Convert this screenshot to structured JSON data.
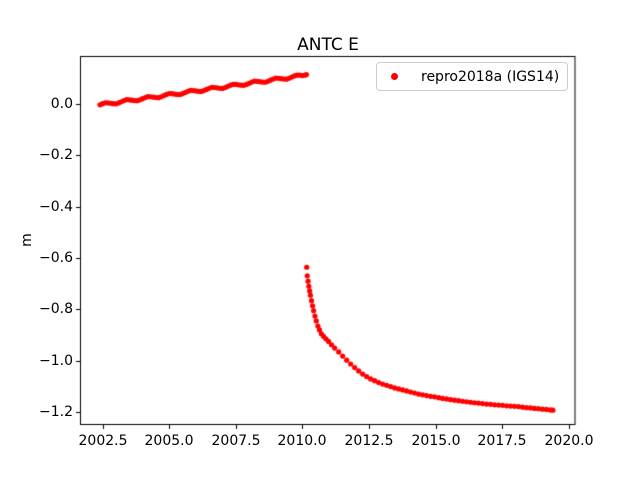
{
  "figure": {
    "background": "#ffffff",
    "accent_color": "#ff0000",
    "axis_color": "#000000"
  },
  "chart_data": {
    "type": "scatter",
    "title": "ANTC E",
    "xlabel": "",
    "ylabel": "m",
    "grid": false,
    "xlim": [
      2001.65,
      2020.25
    ],
    "ylim": [
      -1.2506,
      0.1872
    ],
    "xticks": [
      2002.5,
      2005.0,
      2007.5,
      2010.0,
      2012.5,
      2015.0,
      2017.5,
      2020.0
    ],
    "xtick_labels": [
      "2002.5",
      "2005.0",
      "2007.5",
      "2010.0",
      "2012.5",
      "2015.0",
      "2017.5",
      "2020.0"
    ],
    "yticks": [
      0.0,
      -0.2,
      -0.4,
      -0.6,
      -0.8,
      -1.0,
      -1.2
    ],
    "ytick_labels": [
      "0.0",
      "−0.2",
      "−0.4",
      "−0.6",
      "−0.8",
      "−1.0",
      "−1.2"
    ],
    "legend": {
      "label": "repro2018a (IGS14)",
      "position": "upper right",
      "marker_color": "#ff0000"
    },
    "series": [
      {
        "name": "repro2018a (IGS14)",
        "color": "#ff0000",
        "marker": "dot",
        "points": [
          [
            2002.4,
            -0.003
          ],
          [
            2002.5,
            0.0015
          ],
          [
            2002.6,
            0.005
          ],
          [
            2002.7,
            0.0045
          ],
          [
            2002.8,
            0.003
          ],
          [
            2002.9,
            0.0015
          ],
          [
            2003.0,
            0.001
          ],
          [
            2003.1,
            0.0045
          ],
          [
            2003.2,
            0.009
          ],
          [
            2003.3,
            0.0135
          ],
          [
            2003.4,
            0.017
          ],
          [
            2003.5,
            0.0165
          ],
          [
            2003.6,
            0.015
          ],
          [
            2003.7,
            0.0135
          ],
          [
            2003.8,
            0.013
          ],
          [
            2003.9,
            0.0165
          ],
          [
            2004.0,
            0.021
          ],
          [
            2004.1,
            0.0255
          ],
          [
            2004.2,
            0.029
          ],
          [
            2004.3,
            0.0285
          ],
          [
            2004.4,
            0.027
          ],
          [
            2004.5,
            0.0255
          ],
          [
            2004.6,
            0.025
          ],
          [
            2004.7,
            0.0285
          ],
          [
            2004.8,
            0.033
          ],
          [
            2004.9,
            0.0375
          ],
          [
            2005.0,
            0.041
          ],
          [
            2005.1,
            0.0405
          ],
          [
            2005.2,
            0.039
          ],
          [
            2005.3,
            0.0375
          ],
          [
            2005.4,
            0.037
          ],
          [
            2005.5,
            0.0405
          ],
          [
            2005.6,
            0.045
          ],
          [
            2005.7,
            0.0495
          ],
          [
            2005.8,
            0.053
          ],
          [
            2005.9,
            0.0525
          ],
          [
            2006.0,
            0.051
          ],
          [
            2006.1,
            0.0495
          ],
          [
            2006.2,
            0.049
          ],
          [
            2006.3,
            0.0525
          ],
          [
            2006.4,
            0.057
          ],
          [
            2006.5,
            0.0615
          ],
          [
            2006.6,
            0.065
          ],
          [
            2006.7,
            0.0645
          ],
          [
            2006.8,
            0.063
          ],
          [
            2006.9,
            0.0615
          ],
          [
            2007.0,
            0.061
          ],
          [
            2007.1,
            0.0645
          ],
          [
            2007.2,
            0.069
          ],
          [
            2007.3,
            0.0735
          ],
          [
            2007.4,
            0.077
          ],
          [
            2007.5,
            0.0765
          ],
          [
            2007.6,
            0.075
          ],
          [
            2007.7,
            0.0735
          ],
          [
            2007.8,
            0.073
          ],
          [
            2007.9,
            0.0765
          ],
          [
            2008.0,
            0.081
          ],
          [
            2008.1,
            0.0855
          ],
          [
            2008.2,
            0.089
          ],
          [
            2008.3,
            0.0885
          ],
          [
            2008.4,
            0.087
          ],
          [
            2008.5,
            0.0855
          ],
          [
            2008.6,
            0.085
          ],
          [
            2008.7,
            0.0885
          ],
          [
            2008.8,
            0.093
          ],
          [
            2008.9,
            0.0975
          ],
          [
            2009.0,
            0.101
          ],
          [
            2009.1,
            0.1005
          ],
          [
            2009.2,
            0.099
          ],
          [
            2009.3,
            0.0975
          ],
          [
            2009.4,
            0.097
          ],
          [
            2009.5,
            0.1005
          ],
          [
            2009.6,
            0.105
          ],
          [
            2009.7,
            0.1095
          ],
          [
            2009.8,
            0.113
          ],
          [
            2009.9,
            0.1125
          ],
          [
            2010.0,
            0.111
          ],
          [
            2010.1,
            0.113
          ],
          [
            2010.15,
            0.115
          ],
          [
            2010.16,
            -0.636
          ],
          [
            2010.18,
            -0.669
          ],
          [
            2010.21,
            -0.69
          ],
          [
            2010.24,
            -0.71
          ],
          [
            2010.27,
            -0.728
          ],
          [
            2010.3,
            -0.745
          ],
          [
            2010.34,
            -0.766
          ],
          [
            2010.38,
            -0.786
          ],
          [
            2010.42,
            -0.805
          ],
          [
            2010.47,
            -0.826
          ],
          [
            2010.52,
            -0.845
          ],
          [
            2010.58,
            -0.865
          ],
          [
            2010.64,
            -0.88
          ],
          [
            2010.71,
            -0.895
          ],
          [
            2010.79,
            -0.905
          ],
          [
            2010.88,
            -0.915
          ],
          [
            2010.98,
            -0.925
          ],
          [
            2011.09,
            -0.938
          ],
          [
            2011.21,
            -0.951
          ],
          [
            2011.36,
            -0.966
          ],
          [
            2011.51,
            -0.982
          ],
          [
            2011.66,
            -0.998
          ],
          [
            2011.81,
            -1.013
          ],
          [
            2011.96,
            -1.027
          ],
          [
            2012.11,
            -1.04
          ],
          [
            2012.26,
            -1.052
          ],
          [
            2012.41,
            -1.062
          ],
          [
            2012.56,
            -1.071
          ],
          [
            2012.71,
            -1.078
          ],
          [
            2012.86,
            -1.085
          ],
          [
            2013.01,
            -1.091
          ],
          [
            2013.16,
            -1.096
          ],
          [
            2013.31,
            -1.101
          ],
          [
            2013.46,
            -1.106
          ],
          [
            2013.61,
            -1.11
          ],
          [
            2013.76,
            -1.114
          ],
          [
            2013.91,
            -1.118
          ],
          [
            2014.06,
            -1.122
          ],
          [
            2014.21,
            -1.126
          ],
          [
            2014.36,
            -1.13
          ],
          [
            2014.51,
            -1.133
          ],
          [
            2014.66,
            -1.136
          ],
          [
            2014.81,
            -1.139
          ],
          [
            2014.96,
            -1.141
          ],
          [
            2015.11,
            -1.144
          ],
          [
            2015.26,
            -1.147
          ],
          [
            2015.41,
            -1.149
          ],
          [
            2015.56,
            -1.152
          ],
          [
            2015.71,
            -1.154
          ],
          [
            2015.86,
            -1.156
          ],
          [
            2016.01,
            -1.158
          ],
          [
            2016.16,
            -1.16
          ],
          [
            2016.31,
            -1.162
          ],
          [
            2016.46,
            -1.164
          ],
          [
            2016.61,
            -1.165
          ],
          [
            2016.76,
            -1.167
          ],
          [
            2016.91,
            -1.169
          ],
          [
            2017.06,
            -1.17
          ],
          [
            2017.21,
            -1.172
          ],
          [
            2017.36,
            -1.173
          ],
          [
            2017.51,
            -1.174
          ],
          [
            2017.66,
            -1.176
          ],
          [
            2017.81,
            -1.177
          ],
          [
            2017.96,
            -1.178
          ],
          [
            2018.11,
            -1.179
          ],
          [
            2018.26,
            -1.181
          ],
          [
            2018.41,
            -1.183
          ],
          [
            2018.56,
            -1.184
          ],
          [
            2018.71,
            -1.186
          ],
          [
            2018.86,
            -1.187
          ],
          [
            2019.01,
            -1.189
          ],
          [
            2019.16,
            -1.19
          ],
          [
            2019.31,
            -1.192
          ],
          [
            2019.4,
            -1.193
          ]
        ]
      }
    ]
  }
}
